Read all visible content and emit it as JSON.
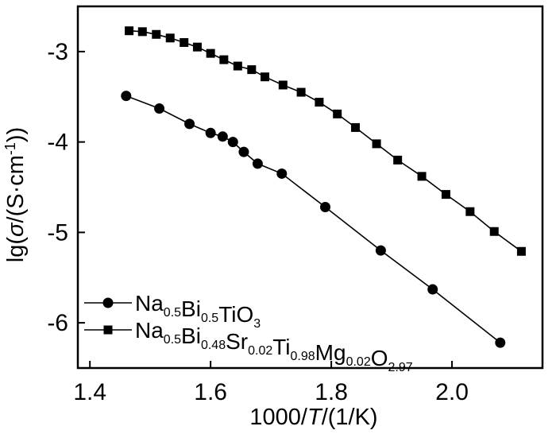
{
  "chart_data": {
    "type": "scatter",
    "title": "",
    "xlabel": "1000/T/(1/K)",
    "ylabel": "lg(σ/(S·cm⁻¹))",
    "xlim": [
      1.38,
      2.15
    ],
    "ylim": [
      -6.5,
      -2.5
    ],
    "x_ticks": [
      1.4,
      1.6,
      1.8,
      2.0
    ],
    "y_ticks": [
      -3,
      -4,
      -5,
      -6
    ],
    "x_tick_labels": [
      "1.4",
      "1.6",
      "1.8",
      "2.0"
    ],
    "y_tick_labels": [
      "-3",
      "-4",
      "-5",
      "-6"
    ],
    "grid": false,
    "legend_position": "bottom-left",
    "series": [
      {
        "name": "Na0.5Bi0.5TiO3",
        "name_parts": [
          {
            "text": "Na",
            "sub": "0.5"
          },
          {
            "text": "Bi",
            "sub": "0.5"
          },
          {
            "text": "TiO",
            "sub": "3"
          }
        ],
        "marker": "circle",
        "x": [
          1.46,
          1.515,
          1.565,
          1.6,
          1.62,
          1.637,
          1.655,
          1.678,
          1.718,
          1.79,
          1.882,
          1.968,
          2.08
        ],
        "y": [
          -3.49,
          -3.63,
          -3.8,
          -3.9,
          -3.94,
          -4.0,
          -4.11,
          -4.24,
          -4.35,
          -4.72,
          -5.2,
          -5.63,
          -6.22
        ]
      },
      {
        "name": "Na0.5Bi0.48Sr0.02Ti0.98Mg0.02O2.97",
        "name_parts": [
          {
            "text": "Na",
            "sub": "0.5"
          },
          {
            "text": "Bi",
            "sub": "0.48"
          },
          {
            "text": "Sr",
            "sub": "0.02"
          },
          {
            "text": "Ti",
            "sub": "0.98"
          },
          {
            "text": "Mg",
            "sub": "0.02"
          },
          {
            "text": "O",
            "sub": "2.97"
          }
        ],
        "marker": "square",
        "x": [
          1.465,
          1.487,
          1.51,
          1.533,
          1.556,
          1.578,
          1.6,
          1.622,
          1.645,
          1.668,
          1.69,
          1.72,
          1.75,
          1.78,
          1.81,
          1.84,
          1.875,
          1.91,
          1.95,
          1.99,
          2.03,
          2.07,
          2.115
        ],
        "y": [
          -2.77,
          -2.78,
          -2.81,
          -2.85,
          -2.9,
          -2.95,
          -3.02,
          -3.09,
          -3.16,
          -3.2,
          -3.28,
          -3.37,
          -3.45,
          -3.56,
          -3.69,
          -3.84,
          -4.02,
          -4.2,
          -4.38,
          -4.58,
          -4.77,
          -4.99,
          -5.21
        ]
      }
    ]
  }
}
